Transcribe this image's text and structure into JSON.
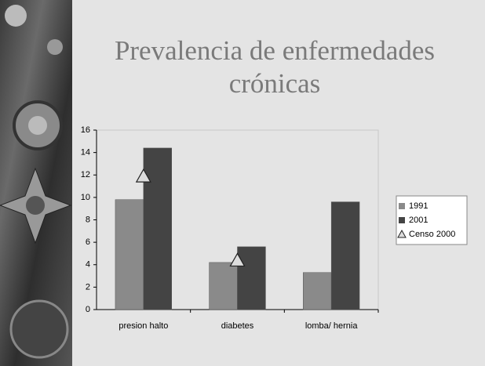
{
  "chart_data": {
    "type": "bar",
    "title": "Prevalencia de enfermedades crónicas",
    "categories": [
      "presion halto",
      "diabetes",
      "lomba/ hernia"
    ],
    "series": [
      {
        "name": "1991",
        "color": "#8a8a8a",
        "values": [
          9.8,
          4.2,
          3.3
        ]
      },
      {
        "name": "2001",
        "color": "#444444",
        "values": [
          14.4,
          5.6,
          9.6
        ]
      },
      {
        "name": "Censo 2000",
        "color": "#dddddd",
        "marker": "triangle",
        "values": [
          11.8,
          4.3,
          null
        ]
      }
    ],
    "ylim": [
      0,
      16
    ],
    "yticks": [
      0,
      2,
      4,
      6,
      8,
      10,
      12,
      14,
      16
    ],
    "legend": "right"
  }
}
